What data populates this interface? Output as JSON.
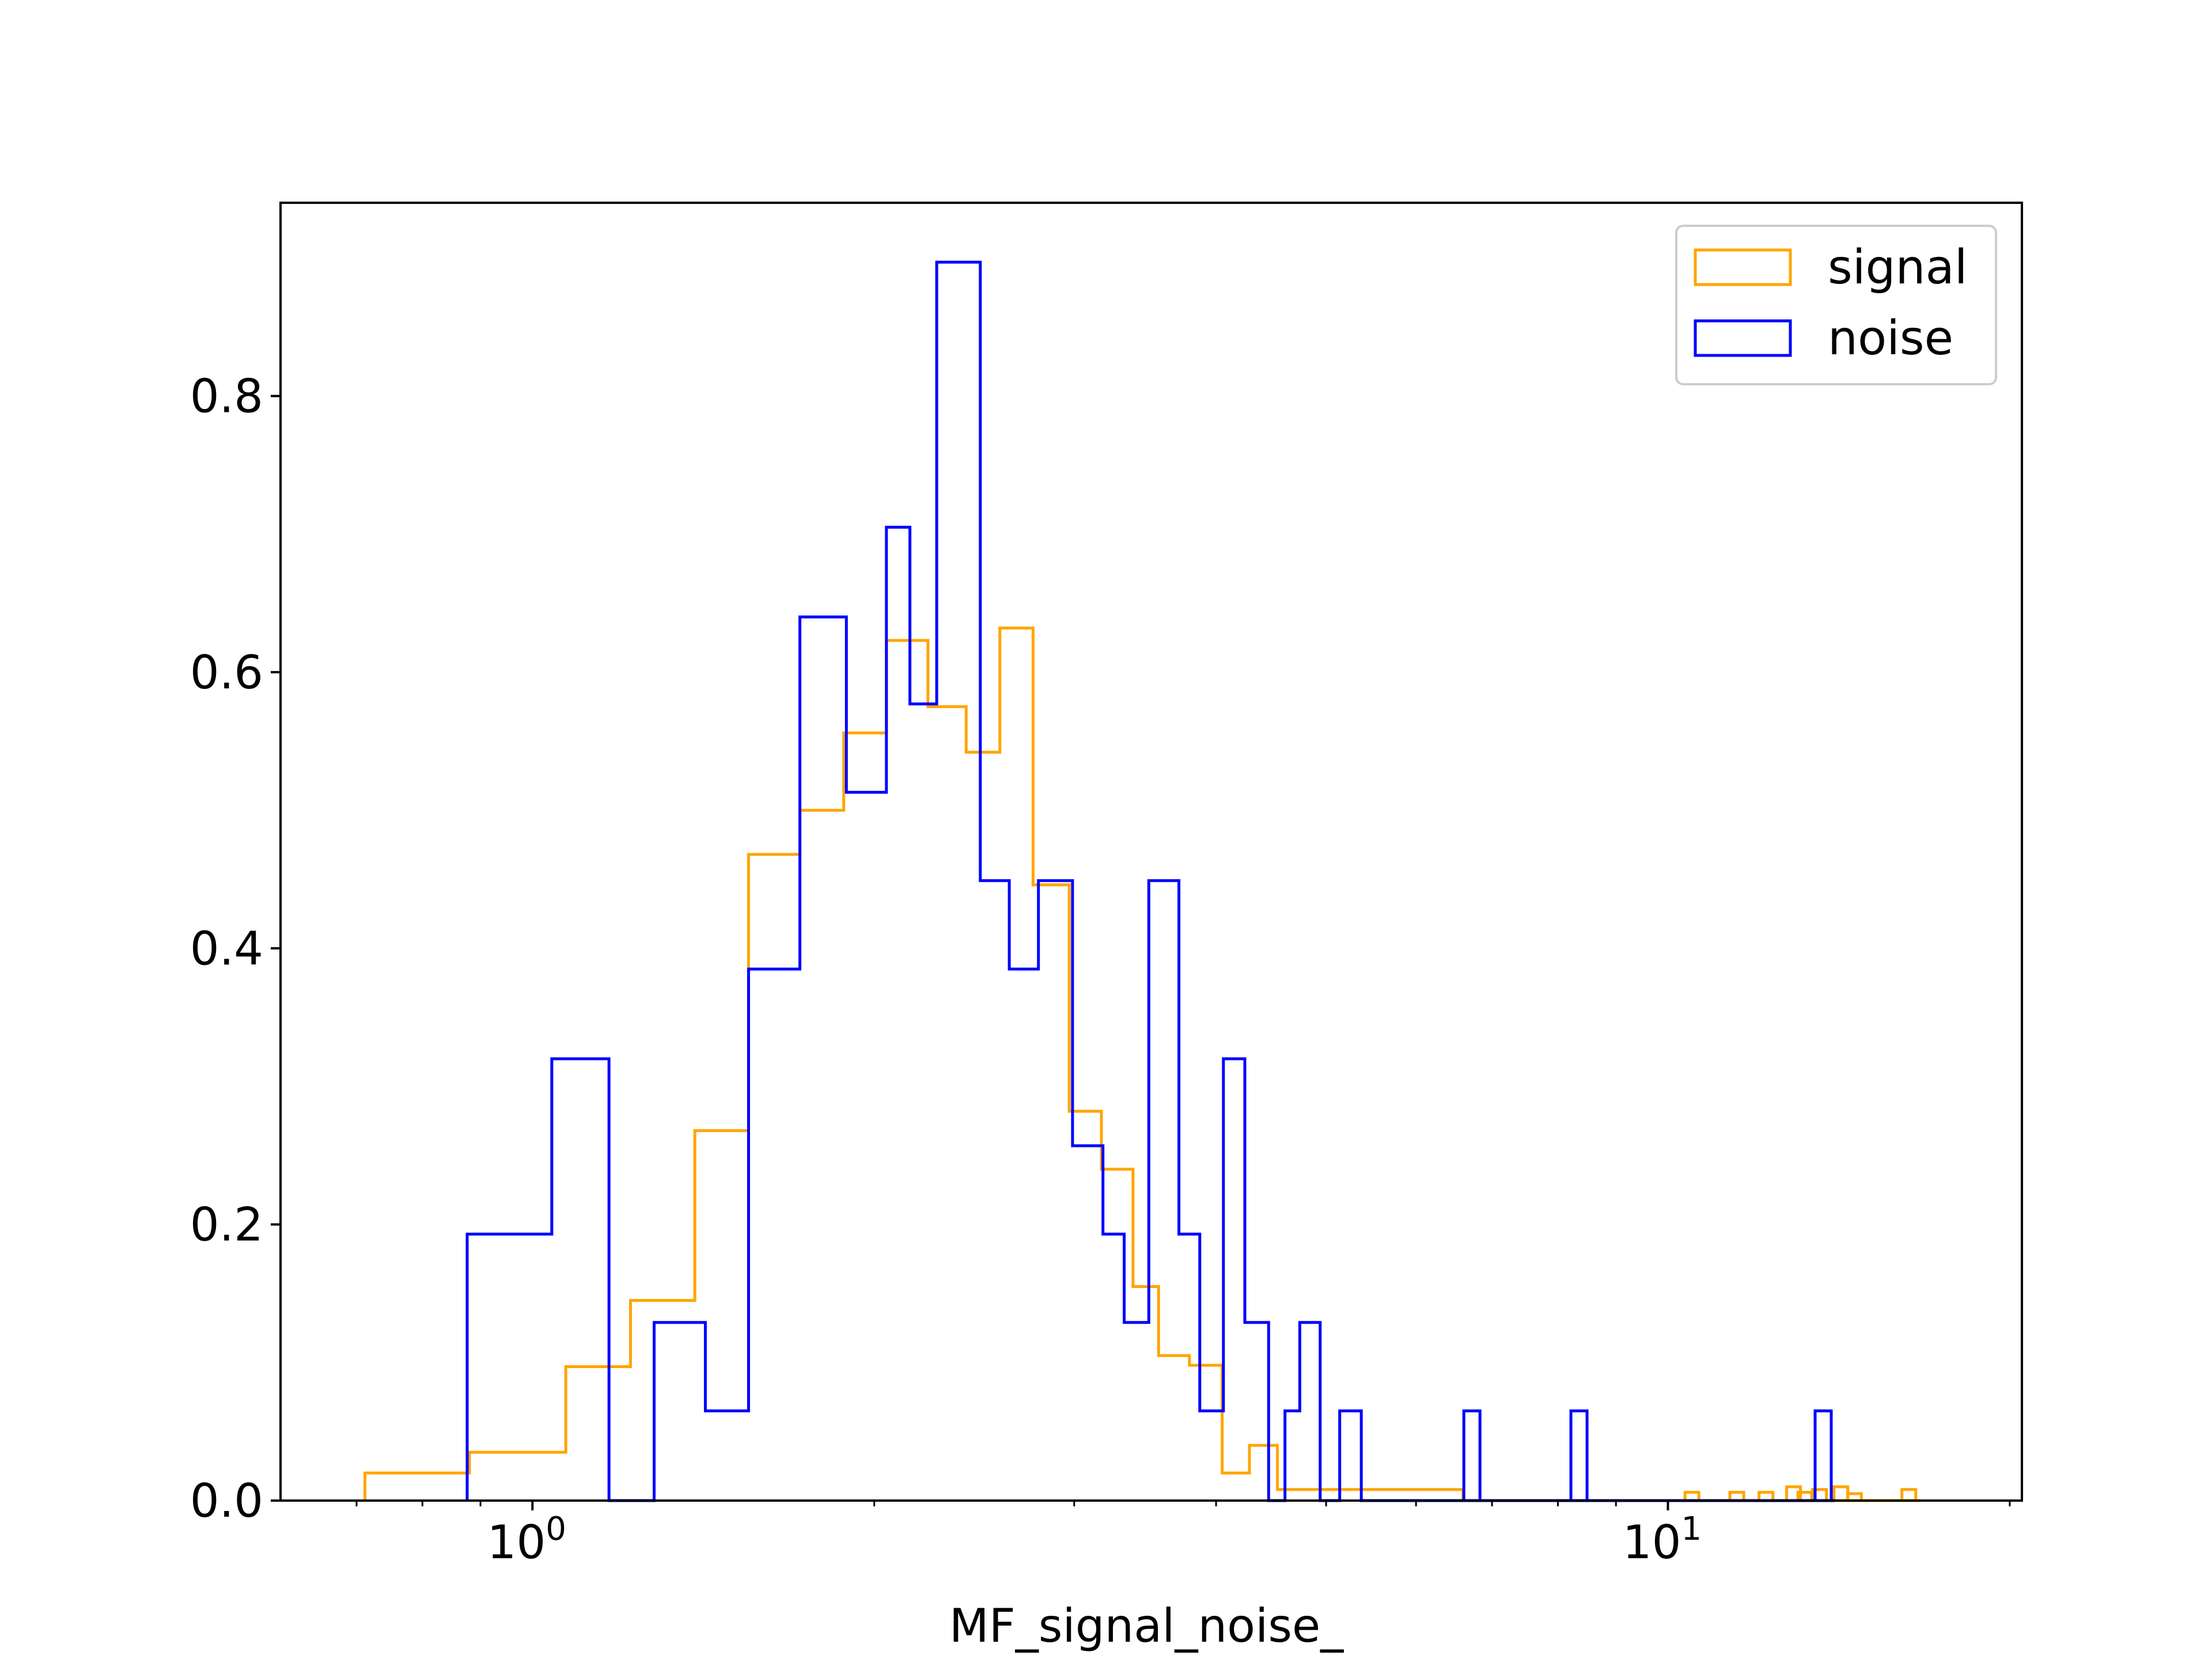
{
  "chart_data": {
    "type": "histogram",
    "title": "",
    "xlabel": "MF_signal_noise_",
    "ylabel": "",
    "xscale": "log",
    "xlim": [
      0.6,
      20.5
    ],
    "ylim": [
      0,
      0.94
    ],
    "grid": false,
    "legend_position": "top-right",
    "x_major_ticks": [
      {
        "value": 1,
        "base": "10",
        "exp": "0"
      },
      {
        "value": 10,
        "base": "10",
        "exp": "1"
      }
    ],
    "x_minor_ticks": [
      0.7,
      0.8,
      0.9,
      2,
      3,
      4,
      5,
      6,
      7,
      8,
      9,
      20
    ],
    "y_ticks": [
      {
        "value": 0.0,
        "label": "0.0"
      },
      {
        "value": 0.2,
        "label": "0.2"
      },
      {
        "value": 0.4,
        "label": "0.4"
      },
      {
        "value": 0.6,
        "label": "0.6"
      },
      {
        "value": 0.8,
        "label": "0.8"
      }
    ],
    "series": [
      {
        "name": "signal",
        "color": "#FFA500",
        "steps": [
          [
            0.712,
            0.02
          ],
          [
            0.88,
            0.035
          ],
          [
            1.07,
            0.097
          ],
          [
            1.22,
            0.145
          ],
          [
            1.39,
            0.268
          ],
          [
            1.55,
            0.468
          ],
          [
            1.72,
            0.5
          ],
          [
            1.88,
            0.556
          ],
          [
            2.05,
            0.623
          ],
          [
            2.23,
            0.575
          ],
          [
            2.41,
            0.542
          ],
          [
            2.58,
            0.632
          ],
          [
            2.76,
            0.446
          ],
          [
            2.97,
            0.282
          ],
          [
            3.17,
            0.24
          ],
          [
            3.38,
            0.155
          ],
          [
            3.56,
            0.105
          ],
          [
            3.79,
            0.098
          ],
          [
            4.05,
            0.02
          ],
          [
            4.28,
            0.04
          ],
          [
            4.53,
            0.008
          ],
          [
            4.95,
            0.008
          ],
          [
            5.5,
            0.008
          ],
          [
            6.2,
            0.008
          ]
        ],
        "end": 6.6,
        "tail": [
          [
            10.5,
            0.006
          ],
          [
            11.5,
            0.006
          ],
          [
            12.2,
            0.006
          ],
          [
            12.9,
            0.01
          ],
          [
            13.2,
            0.006
          ],
          [
            13.6,
            0.008
          ],
          [
            14.2,
            0.01
          ],
          [
            14.6,
            0.005
          ],
          [
            16.3,
            0.008
          ]
        ]
      },
      {
        "name": "noise",
        "color": "#0000FF",
        "steps": [
          [
            0.876,
            0.193
          ],
          [
            1.04,
            0.32
          ],
          [
            1.168,
            0
          ],
          [
            1.28,
            0.129
          ],
          [
            1.42,
            0.065
          ],
          [
            1.55,
            0.385
          ],
          [
            1.72,
            0.64
          ],
          [
            1.89,
            0.513
          ],
          [
            2.05,
            0.705
          ],
          [
            2.15,
            0.577
          ],
          [
            2.27,
            0.897
          ],
          [
            2.48,
            0.449
          ],
          [
            2.63,
            0.385
          ],
          [
            2.79,
            0.449
          ],
          [
            2.99,
            0.257
          ],
          [
            3.18,
            0.193
          ],
          [
            3.32,
            0.129
          ],
          [
            3.49,
            0.449
          ],
          [
            3.71,
            0.193
          ],
          [
            3.87,
            0.065
          ],
          [
            4.06,
            0.32
          ],
          [
            4.24,
            0.129
          ],
          [
            4.45,
            0
          ],
          [
            4.6,
            0.065
          ],
          [
            4.74,
            0.129
          ],
          [
            4.94,
            0
          ],
          [
            5.14,
            0.065
          ],
          [
            5.37,
            0
          ]
        ],
        "end": 6.63,
        "tail": [
          [
            6.72,
            0.065
          ],
          [
            8.35,
            0.065
          ],
          [
            13.7,
            0.065
          ]
        ]
      }
    ]
  }
}
